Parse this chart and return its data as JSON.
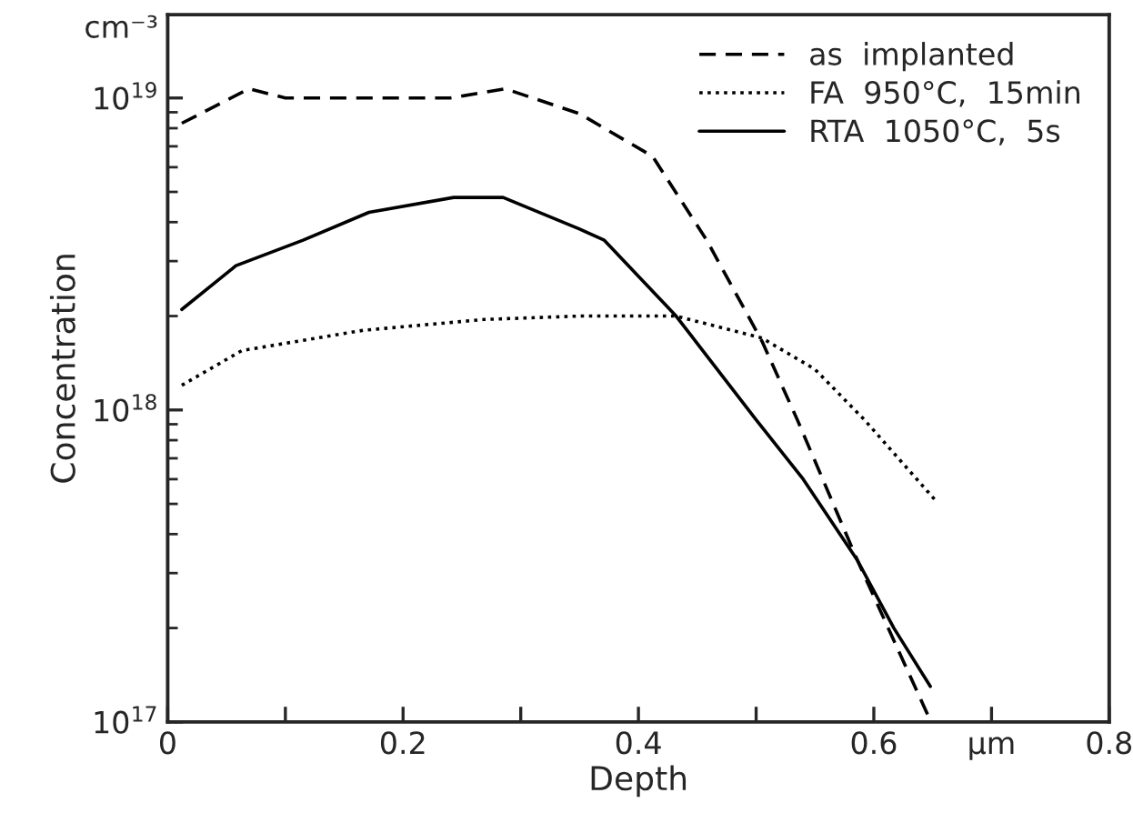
{
  "chart_data": {
    "type": "line",
    "xlabel": "Depth",
    "ylabel": "Concentration",
    "annotations": [
      "cm⁻³"
    ],
    "log": "y",
    "xlim": [
      0,
      0.8
    ],
    "ylim": [
      1e+17,
      1.85e+19
    ],
    "xticks": [
      0,
      {
        "value": 0.1,
        "label": null
      },
      0.2,
      {
        "value": 0.3,
        "label": null
      },
      0.4,
      {
        "value": 0.5,
        "label": null
      },
      0.6,
      {
        "value": 0.7,
        "label": "µm"
      },
      0.8
    ],
    "yticks": [
      {
        "value": 1e+17,
        "label": "10$^{17}$"
      },
      {
        "value": 1e+18,
        "label": "10$^{18}$"
      },
      {
        "value": 1e+19,
        "label": "10$^{19}$"
      }
    ],
    "grid": false,
    "legend": "top right",
    "marker": "none",
    "series": [
      {
        "name": "as  implanted",
        "color": "#000000",
        "line_style": "dashed",
        "x": [
          0.012,
          0.069,
          0.1,
          0.24,
          0.287,
          0.35,
          0.412,
          0.458,
          0.505,
          0.535,
          0.586,
          0.628,
          0.646
        ],
        "values": [
          8.3e+18,
          1.07e+19,
          1e+19,
          1e+19,
          1.07e+19,
          8.9e+18,
          6.5e+18,
          3.5e+18,
          1.66e+18,
          9.3e+17,
          3.3e+17,
          1.48e+17,
          1.05e+17
        ]
      },
      {
        "name": "FA  950°C,  15min",
        "color": "#000000",
        "line_style": "dotted",
        "x": [
          0.012,
          0.063,
          0.166,
          0.269,
          0.35,
          0.432,
          0.505,
          0.55,
          0.592,
          0.653
        ],
        "values": [
          1.2e+18,
          1.55e+18,
          1.8e+18,
          1.95e+18,
          2e+18,
          2e+18,
          1.7e+18,
          1.35e+18,
          9.3e+17,
          5.1e+17
        ]
      },
      {
        "name": "RTA  1050°C,  5s",
        "color": "#000000",
        "line_style": "solid",
        "x": [
          0.012,
          0.058,
          0.115,
          0.171,
          0.243,
          0.285,
          0.35,
          0.371,
          0.432,
          0.5,
          0.54,
          0.586,
          0.617,
          0.648
        ],
        "values": [
          2.1e+18,
          2.9e+18,
          3.5e+18,
          4.3e+18,
          4.8e+18,
          4.8e+18,
          3.8e+18,
          3.5e+18,
          2e+18,
          9.3e+17,
          6e+17,
          3.3e+17,
          2e+17,
          1.3e+17
        ]
      }
    ]
  }
}
